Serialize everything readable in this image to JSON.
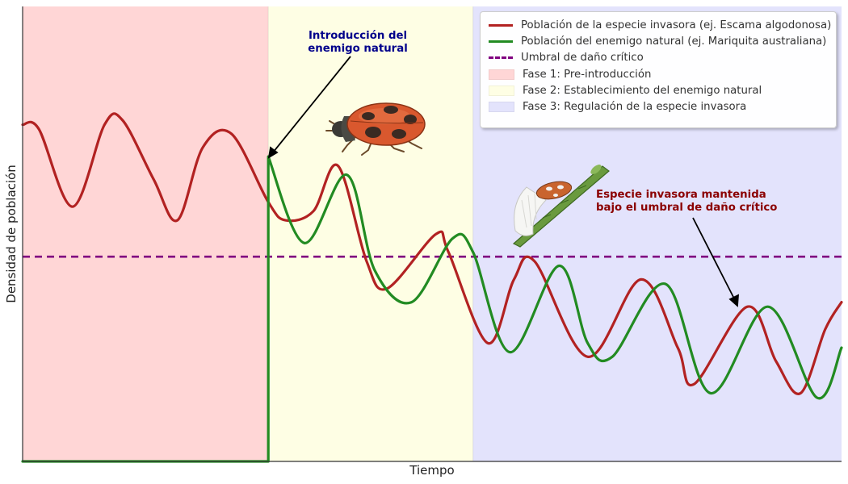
{
  "chart_data": {
    "type": "line",
    "title": "",
    "xlabel": "Tiempo",
    "ylabel": "Densidad de población",
    "xlim": [
      0,
      100
    ],
    "ylim": [
      0,
      100
    ],
    "x_ticks_shown": false,
    "y_ticks_shown": false,
    "grid": false,
    "legend_position": "top-right",
    "phases": [
      {
        "label": "Fase 1: Pre-introducción",
        "x_start": 0,
        "x_end": 30,
        "color": "#ffd6d6"
      },
      {
        "label": "Fase 2: Establecimiento del enemigo natural",
        "x_start": 30,
        "x_end": 55,
        "color": "#fefee4"
      },
      {
        "label": "Fase 3: Regulación de la especie invasora",
        "x_start": 55,
        "x_end": 100,
        "color": "#e3e3fc"
      }
    ],
    "threshold": {
      "label": "Umbral de daño crítico",
      "y": 45,
      "color": "#800080"
    },
    "series": [
      {
        "name": "Población de la especie invasora (ej. Escama algodonosa)",
        "color": "#b22222",
        "x": [
          0,
          2,
          6.1,
          10,
          12.2,
          16,
          18.9,
          22,
          25.5,
          30,
          32.1,
          35.5,
          38.5,
          42,
          44.5,
          50.5,
          52,
          56.8,
          60,
          62.5,
          69,
          75.5,
          80,
          82,
          88.5,
          92,
          95,
          98,
          100
        ],
        "y": [
          74,
          73,
          56,
          74,
          75,
          62,
          53,
          69,
          72,
          57,
          53,
          55,
          65,
          44,
          38,
          50,
          46,
          26,
          40,
          44,
          23,
          40,
          25,
          17,
          34,
          22,
          15,
          29,
          35
        ]
      },
      {
        "name": "Población del enemigo natural (ej. Mariquita australiana)",
        "color": "#228b22",
        "x": [
          0,
          30,
          30,
          34.4,
          39.6,
          43,
          47.5,
          52.5,
          55,
          59.5,
          65.5,
          69,
          72,
          78.5,
          84,
          91,
          97,
          100
        ],
        "y": [
          0,
          0,
          67,
          48,
          63,
          42,
          35,
          49,
          46,
          24,
          43,
          26,
          23,
          39,
          15,
          34,
          14,
          25
        ]
      }
    ],
    "annotations": [
      {
        "text": "Introducción del enemigo natural",
        "color": "#00008b",
        "points_to": {
          "x": 30,
          "y": 67
        }
      },
      {
        "text": "Especie invasora mantenida bajo el umbral de daño crítico",
        "color": "#8b0000",
        "points_to": {
          "x": 87.5,
          "y": 34
        }
      }
    ]
  },
  "text": {
    "annotation_intro_line1": "Introducción del",
    "annotation_intro_line2": "enemigo natural",
    "annotation_result_line1": "Especie invasora mantenida",
    "annotation_result_line2": "bajo el umbral de daño crítico"
  },
  "illustrations": {
    "ladybird": "ladybird-icon",
    "scale_insect": "scale-insect-on-twig-icon"
  }
}
